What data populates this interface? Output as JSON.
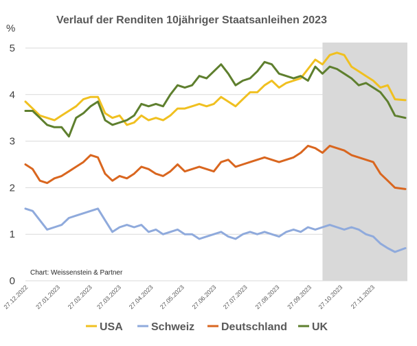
{
  "chart_data": {
    "type": "line",
    "title": "Verlauf der Renditen 10jähriger Staatsanleihen 2023",
    "y_unit": "%",
    "ylim": [
      0,
      5
    ],
    "yticks": [
      "0",
      "1",
      "2",
      "3",
      "4",
      "5"
    ],
    "xticks": [
      "27.12.2022",
      "27.01.2023",
      "27.02.2023",
      "27.03.2023",
      "27.04.2023",
      "27.05.2023",
      "27.06.2023",
      "27.07.2023",
      "27.08.2023",
      "27.09.2023",
      "27.10.2023",
      "27.11.2023"
    ],
    "grid": true,
    "legend_position": "bottom",
    "credit": "Chart: Weissenstein & Partner",
    "shaded_period": [
      "10.10.2023",
      "31.12.2023"
    ],
    "series": [
      {
        "name": "USA",
        "color": "#F0C020",
        "points": [
          [
            "27.12.2022",
            3.85
          ],
          [
            "03.01.2023",
            3.7
          ],
          [
            "10.01.2023",
            3.55
          ],
          [
            "17.01.2023",
            3.5
          ],
          [
            "24.01.2023",
            3.45
          ],
          [
            "31.01.2023",
            3.55
          ],
          [
            "07.02.2023",
            3.65
          ],
          [
            "14.02.2023",
            3.75
          ],
          [
            "21.02.2023",
            3.9
          ],
          [
            "28.02.2023",
            3.95
          ],
          [
            "07.03.2023",
            3.95
          ],
          [
            "14.03.2023",
            3.6
          ],
          [
            "21.03.2023",
            3.5
          ],
          [
            "28.03.2023",
            3.55
          ],
          [
            "04.04.2023",
            3.35
          ],
          [
            "11.04.2023",
            3.4
          ],
          [
            "18.04.2023",
            3.55
          ],
          [
            "25.04.2023",
            3.45
          ],
          [
            "02.05.2023",
            3.5
          ],
          [
            "09.05.2023",
            3.45
          ],
          [
            "16.05.2023",
            3.55
          ],
          [
            "23.05.2023",
            3.7
          ],
          [
            "30.05.2023",
            3.7
          ],
          [
            "06.06.2023",
            3.75
          ],
          [
            "13.06.2023",
            3.8
          ],
          [
            "20.06.2023",
            3.75
          ],
          [
            "27.06.2023",
            3.8
          ],
          [
            "04.07.2023",
            3.95
          ],
          [
            "11.07.2023",
            3.85
          ],
          [
            "18.07.2023",
            3.75
          ],
          [
            "25.07.2023",
            3.9
          ],
          [
            "01.08.2023",
            4.05
          ],
          [
            "08.08.2023",
            4.05
          ],
          [
            "15.08.2023",
            4.2
          ],
          [
            "22.08.2023",
            4.3
          ],
          [
            "29.08.2023",
            4.15
          ],
          [
            "05.09.2023",
            4.25
          ],
          [
            "12.09.2023",
            4.3
          ],
          [
            "19.09.2023",
            4.35
          ],
          [
            "26.09.2023",
            4.55
          ],
          [
            "03.10.2023",
            4.75
          ],
          [
            "10.10.2023",
            4.65
          ],
          [
            "17.10.2023",
            4.85
          ],
          [
            "24.10.2023",
            4.9
          ],
          [
            "31.10.2023",
            4.85
          ],
          [
            "07.11.2023",
            4.6
          ],
          [
            "14.11.2023",
            4.5
          ],
          [
            "21.11.2023",
            4.4
          ],
          [
            "28.11.2023",
            4.3
          ],
          [
            "05.12.2023",
            4.15
          ],
          [
            "12.12.2023",
            4.2
          ],
          [
            "19.12.2023",
            3.9
          ],
          [
            "29.12.2023",
            3.88
          ]
        ]
      },
      {
        "name": "Schweiz",
        "color": "#8FAADC",
        "points": [
          [
            "27.12.2022",
            1.55
          ],
          [
            "03.01.2023",
            1.5
          ],
          [
            "10.01.2023",
            1.3
          ],
          [
            "17.01.2023",
            1.1
          ],
          [
            "24.01.2023",
            1.15
          ],
          [
            "31.01.2023",
            1.2
          ],
          [
            "07.02.2023",
            1.35
          ],
          [
            "14.02.2023",
            1.4
          ],
          [
            "21.02.2023",
            1.45
          ],
          [
            "28.02.2023",
            1.5
          ],
          [
            "07.03.2023",
            1.55
          ],
          [
            "14.03.2023",
            1.3
          ],
          [
            "21.03.2023",
            1.05
          ],
          [
            "28.03.2023",
            1.15
          ],
          [
            "04.04.2023",
            1.2
          ],
          [
            "11.04.2023",
            1.15
          ],
          [
            "18.04.2023",
            1.2
          ],
          [
            "25.04.2023",
            1.05
          ],
          [
            "02.05.2023",
            1.1
          ],
          [
            "09.05.2023",
            1.0
          ],
          [
            "16.05.2023",
            1.05
          ],
          [
            "23.05.2023",
            1.1
          ],
          [
            "30.05.2023",
            1.0
          ],
          [
            "06.06.2023",
            1.0
          ],
          [
            "13.06.2023",
            0.9
          ],
          [
            "20.06.2023",
            0.95
          ],
          [
            "27.06.2023",
            1.0
          ],
          [
            "04.07.2023",
            1.05
          ],
          [
            "11.07.2023",
            0.95
          ],
          [
            "18.07.2023",
            0.9
          ],
          [
            "25.07.2023",
            1.0
          ],
          [
            "01.08.2023",
            1.05
          ],
          [
            "08.08.2023",
            1.0
          ],
          [
            "15.08.2023",
            1.05
          ],
          [
            "22.08.2023",
            1.0
          ],
          [
            "29.08.2023",
            0.95
          ],
          [
            "05.09.2023",
            1.05
          ],
          [
            "12.09.2023",
            1.1
          ],
          [
            "19.09.2023",
            1.05
          ],
          [
            "26.09.2023",
            1.15
          ],
          [
            "03.10.2023",
            1.1
          ],
          [
            "10.10.2023",
            1.15
          ],
          [
            "17.10.2023",
            1.2
          ],
          [
            "24.10.2023",
            1.15
          ],
          [
            "31.10.2023",
            1.1
          ],
          [
            "07.11.2023",
            1.15
          ],
          [
            "14.11.2023",
            1.1
          ],
          [
            "21.11.2023",
            1.0
          ],
          [
            "28.11.2023",
            0.95
          ],
          [
            "05.12.2023",
            0.8
          ],
          [
            "12.12.2023",
            0.7
          ],
          [
            "19.12.2023",
            0.62
          ],
          [
            "29.12.2023",
            0.7
          ]
        ]
      },
      {
        "name": "Deutschland",
        "color": "#D9661F",
        "points": [
          [
            "27.12.2022",
            2.5
          ],
          [
            "03.01.2023",
            2.4
          ],
          [
            "10.01.2023",
            2.15
          ],
          [
            "17.01.2023",
            2.1
          ],
          [
            "24.01.2023",
            2.2
          ],
          [
            "31.01.2023",
            2.25
          ],
          [
            "07.02.2023",
            2.35
          ],
          [
            "14.02.2023",
            2.45
          ],
          [
            "21.02.2023",
            2.55
          ],
          [
            "28.02.2023",
            2.7
          ],
          [
            "07.03.2023",
            2.65
          ],
          [
            "14.03.2023",
            2.3
          ],
          [
            "21.03.2023",
            2.15
          ],
          [
            "28.03.2023",
            2.25
          ],
          [
            "04.04.2023",
            2.2
          ],
          [
            "11.04.2023",
            2.3
          ],
          [
            "18.04.2023",
            2.45
          ],
          [
            "25.04.2023",
            2.4
          ],
          [
            "02.05.2023",
            2.3
          ],
          [
            "09.05.2023",
            2.25
          ],
          [
            "16.05.2023",
            2.35
          ],
          [
            "23.05.2023",
            2.5
          ],
          [
            "30.05.2023",
            2.35
          ],
          [
            "06.06.2023",
            2.4
          ],
          [
            "13.06.2023",
            2.45
          ],
          [
            "20.06.2023",
            2.4
          ],
          [
            "27.06.2023",
            2.35
          ],
          [
            "04.07.2023",
            2.55
          ],
          [
            "11.07.2023",
            2.6
          ],
          [
            "18.07.2023",
            2.45
          ],
          [
            "25.07.2023",
            2.5
          ],
          [
            "01.08.2023",
            2.55
          ],
          [
            "08.08.2023",
            2.6
          ],
          [
            "15.08.2023",
            2.65
          ],
          [
            "22.08.2023",
            2.6
          ],
          [
            "29.08.2023",
            2.55
          ],
          [
            "05.09.2023",
            2.6
          ],
          [
            "12.09.2023",
            2.65
          ],
          [
            "19.09.2023",
            2.75
          ],
          [
            "26.09.2023",
            2.9
          ],
          [
            "03.10.2023",
            2.85
          ],
          [
            "10.10.2023",
            2.75
          ],
          [
            "17.10.2023",
            2.9
          ],
          [
            "24.10.2023",
            2.85
          ],
          [
            "31.10.2023",
            2.8
          ],
          [
            "07.11.2023",
            2.7
          ],
          [
            "14.11.2023",
            2.65
          ],
          [
            "21.11.2023",
            2.6
          ],
          [
            "28.11.2023",
            2.55
          ],
          [
            "05.12.2023",
            2.3
          ],
          [
            "12.12.2023",
            2.15
          ],
          [
            "19.12.2023",
            2.0
          ],
          [
            "29.12.2023",
            1.97
          ]
        ]
      },
      {
        "name": "UK",
        "color": "#5E7F2E",
        "points": [
          [
            "27.12.2022",
            3.65
          ],
          [
            "03.01.2023",
            3.65
          ],
          [
            "10.01.2023",
            3.5
          ],
          [
            "17.01.2023",
            3.35
          ],
          [
            "24.01.2023",
            3.3
          ],
          [
            "31.01.2023",
            3.3
          ],
          [
            "07.02.2023",
            3.1
          ],
          [
            "14.02.2023",
            3.5
          ],
          [
            "21.02.2023",
            3.6
          ],
          [
            "28.02.2023",
            3.75
          ],
          [
            "07.03.2023",
            3.85
          ],
          [
            "14.03.2023",
            3.45
          ],
          [
            "21.03.2023",
            3.35
          ],
          [
            "28.03.2023",
            3.4
          ],
          [
            "04.04.2023",
            3.45
          ],
          [
            "11.04.2023",
            3.55
          ],
          [
            "18.04.2023",
            3.8
          ],
          [
            "25.04.2023",
            3.75
          ],
          [
            "02.05.2023",
            3.8
          ],
          [
            "09.05.2023",
            3.75
          ],
          [
            "16.05.2023",
            4.0
          ],
          [
            "23.05.2023",
            4.2
          ],
          [
            "30.05.2023",
            4.15
          ],
          [
            "06.06.2023",
            4.2
          ],
          [
            "13.06.2023",
            4.4
          ],
          [
            "20.06.2023",
            4.35
          ],
          [
            "27.06.2023",
            4.5
          ],
          [
            "04.07.2023",
            4.65
          ],
          [
            "11.07.2023",
            4.45
          ],
          [
            "18.07.2023",
            4.2
          ],
          [
            "25.07.2023",
            4.3
          ],
          [
            "01.08.2023",
            4.35
          ],
          [
            "08.08.2023",
            4.5
          ],
          [
            "15.08.2023",
            4.7
          ],
          [
            "22.08.2023",
            4.65
          ],
          [
            "29.08.2023",
            4.45
          ],
          [
            "05.09.2023",
            4.4
          ],
          [
            "12.09.2023",
            4.35
          ],
          [
            "19.09.2023",
            4.4
          ],
          [
            "26.09.2023",
            4.3
          ],
          [
            "03.10.2023",
            4.6
          ],
          [
            "10.10.2023",
            4.45
          ],
          [
            "17.10.2023",
            4.6
          ],
          [
            "24.10.2023",
            4.55
          ],
          [
            "31.10.2023",
            4.45
          ],
          [
            "07.11.2023",
            4.35
          ],
          [
            "14.11.2023",
            4.2
          ],
          [
            "21.11.2023",
            4.25
          ],
          [
            "28.11.2023",
            4.15
          ],
          [
            "05.12.2023",
            4.05
          ],
          [
            "12.12.2023",
            3.85
          ],
          [
            "19.12.2023",
            3.55
          ],
          [
            "29.12.2023",
            3.5
          ]
        ]
      }
    ]
  }
}
